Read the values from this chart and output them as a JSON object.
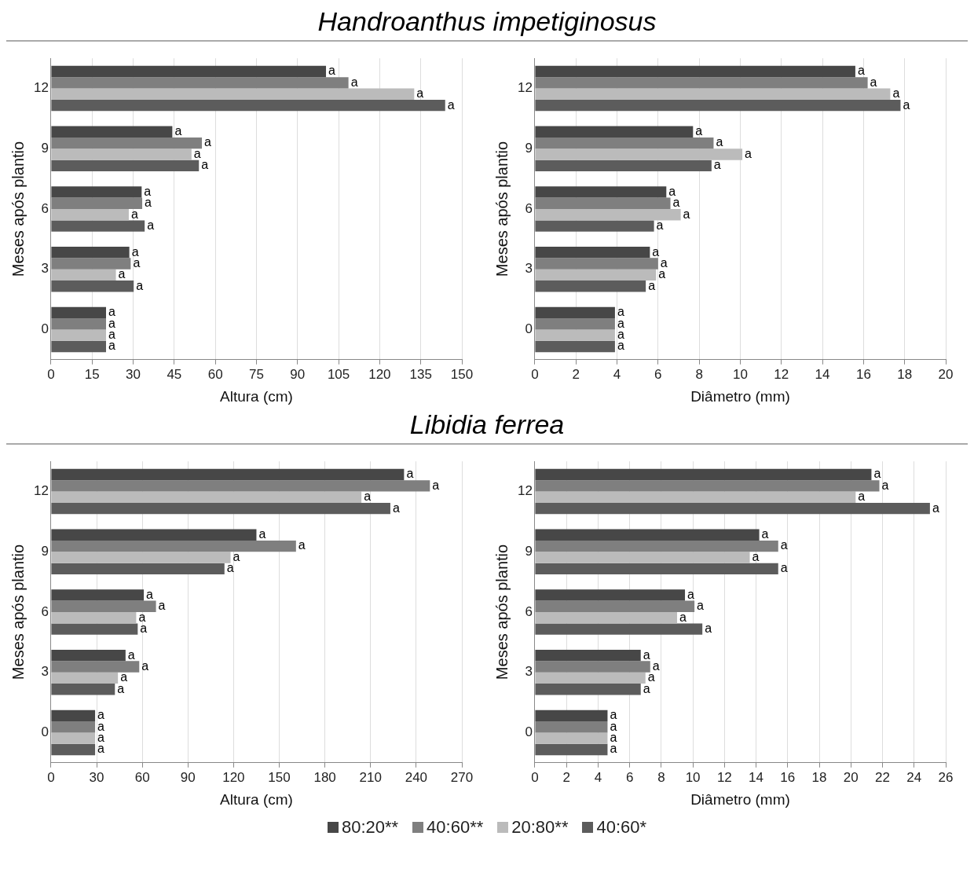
{
  "chart_data": [
    {
      "type": "bar",
      "orientation": "horizontal",
      "title": "Handroanthus impetiginosus",
      "xlabel": "Altura (cm)",
      "ylabel": "Meses após plantio",
      "categories": [
        "12",
        "9",
        "6",
        "3",
        "0"
      ],
      "xlim": [
        0,
        150
      ],
      "xticks": [
        0,
        15,
        30,
        45,
        60,
        75,
        90,
        105,
        120,
        135,
        150
      ],
      "grid": "x",
      "legend": "bottom",
      "series": [
        {
          "name": "80:20**",
          "color": "#474747",
          "values": [
            100.4,
            44.3,
            33.1,
            28.6,
            20.1
          ],
          "value_labels": [
            "a",
            "a",
            "a",
            "a",
            "a"
          ]
        },
        {
          "name": "40:60**",
          "color": "#7f7f7f",
          "values": [
            108.6,
            55.1,
            33.3,
            29.1,
            20.1
          ],
          "value_labels": [
            "a",
            "a",
            "a",
            "a",
            "a"
          ]
        },
        {
          "name": "20:80**",
          "color": "#bbbbbb",
          "values": [
            132.6,
            51.3,
            28.4,
            23.7,
            20.1
          ],
          "value_labels": [
            "a",
            "a",
            "a",
            "a",
            "a"
          ]
        },
        {
          "name": "40:60*",
          "color": "#5c5c5c",
          "values": [
            143.9,
            54.0,
            34.2,
            30.2,
            20.1
          ],
          "value_labels": [
            "a",
            "a",
            "a",
            "a",
            "a"
          ]
        }
      ]
    },
    {
      "type": "bar",
      "orientation": "horizontal",
      "xlabel": "Diâmetro (mm)",
      "ylabel": "Meses após plantio",
      "categories": [
        "12",
        "9",
        "6",
        "3",
        "0"
      ],
      "xlim": [
        0,
        20
      ],
      "xticks": [
        0,
        2,
        4,
        6,
        8,
        10,
        12,
        14,
        16,
        18,
        20
      ],
      "grid": "x",
      "series": [
        {
          "color": "#474747",
          "values": [
            15.6,
            7.7,
            6.4,
            5.6,
            3.9
          ],
          "value_labels": [
            "a",
            "a",
            "a",
            "a",
            "a"
          ]
        },
        {
          "color": "#7f7f7f",
          "values": [
            16.2,
            8.7,
            6.6,
            6.0,
            3.9
          ],
          "value_labels": [
            "a",
            "a",
            "a",
            "a",
            "a"
          ]
        },
        {
          "color": "#bbbbbb",
          "values": [
            17.3,
            10.1,
            7.1,
            5.9,
            3.9
          ],
          "value_labels": [
            "a",
            "a",
            "a",
            "a",
            "a"
          ]
        },
        {
          "color": "#5c5c5c",
          "values": [
            17.8,
            8.6,
            5.8,
            5.4,
            3.9
          ],
          "value_labels": [
            "a",
            "a",
            "a",
            "a",
            "a"
          ]
        }
      ]
    },
    {
      "type": "bar",
      "orientation": "horizontal",
      "title": "Libidia ferrea",
      "xlabel": "Altura (cm)",
      "ylabel": "Meses após plantio",
      "categories": [
        "12",
        "9",
        "6",
        "3",
        "0"
      ],
      "xlim": [
        0,
        270
      ],
      "xticks": [
        0,
        30,
        60,
        90,
        120,
        150,
        180,
        210,
        240,
        270
      ],
      "grid": "x",
      "series": [
        {
          "color": "#474747",
          "values": [
            232,
            135,
            61,
            49,
            29
          ],
          "value_labels": [
            "a",
            "a",
            "a",
            "a",
            "a"
          ]
        },
        {
          "color": "#7f7f7f",
          "values": [
            249,
            161,
            69,
            58,
            29
          ],
          "value_labels": [
            "a",
            "a",
            "a",
            "a",
            "a"
          ]
        },
        {
          "color": "#bbbbbb",
          "values": [
            204,
            118,
            56,
            44,
            29
          ],
          "value_labels": [
            "a",
            "a",
            "a",
            "a",
            "a"
          ]
        },
        {
          "color": "#5c5c5c",
          "values": [
            223,
            114,
            57,
            42,
            29
          ],
          "value_labels": [
            "a",
            "a",
            "a",
            "a",
            "a"
          ]
        }
      ]
    },
    {
      "type": "bar",
      "orientation": "horizontal",
      "xlabel": "Diâmetro (mm)",
      "ylabel": "Meses após plantio",
      "categories": [
        "12",
        "9",
        "6",
        "3",
        "0"
      ],
      "xlim": [
        0,
        26
      ],
      "xticks": [
        0,
        2,
        4,
        6,
        8,
        10,
        12,
        14,
        16,
        18,
        20,
        22,
        24,
        26
      ],
      "grid": "x",
      "series": [
        {
          "color": "#474747",
          "values": [
            21.3,
            14.2,
            9.5,
            6.7,
            4.6
          ],
          "value_labels": [
            "a",
            "a",
            "a",
            "a",
            "a"
          ]
        },
        {
          "color": "#7f7f7f",
          "values": [
            21.8,
            15.4,
            10.1,
            7.3,
            4.6
          ],
          "value_labels": [
            "a",
            "a",
            "a",
            "a",
            "a"
          ]
        },
        {
          "color": "#bbbbbb",
          "values": [
            20.3,
            13.6,
            9.0,
            7.0,
            4.6
          ],
          "value_labels": [
            "a",
            "a",
            "a",
            "a",
            "a"
          ]
        },
        {
          "color": "#5c5c5c",
          "values": [
            25.0,
            15.4,
            10.6,
            6.7,
            4.6
          ],
          "value_labels": [
            "a",
            "a",
            "a",
            "a",
            "a"
          ]
        }
      ]
    }
  ]
}
